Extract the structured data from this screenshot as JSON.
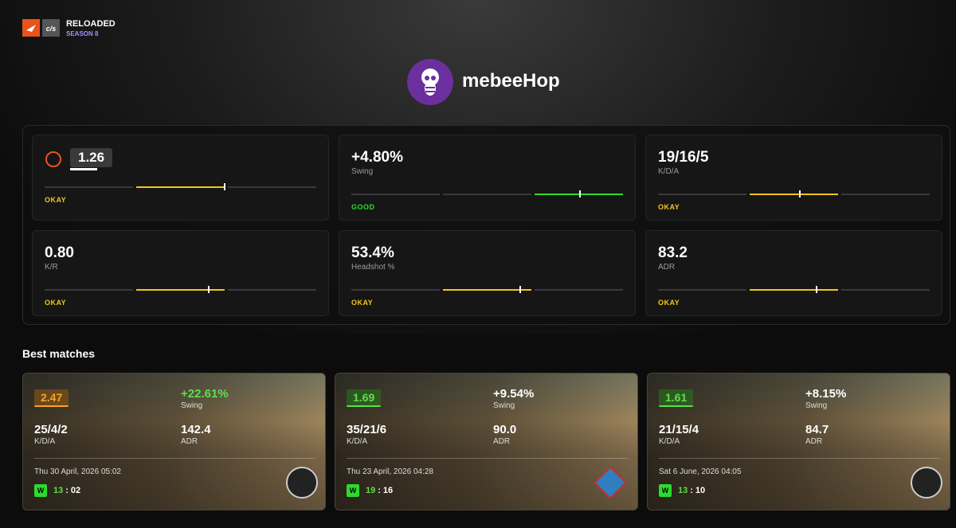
{
  "header": {
    "brand": "RELOADED",
    "season": "SEASON 8"
  },
  "player": {
    "name": "mebeeHop"
  },
  "stats": [
    {
      "value": "1.26",
      "rating": "OKAY",
      "color": "#f5c518",
      "gauge": 0.66,
      "boxed": true
    },
    {
      "value": "+4.80%",
      "label": "Swing",
      "rating": "GOOD",
      "color": "#2bdc2b",
      "gauge": 0.84
    },
    {
      "value": "19/16/5",
      "label": "K/D/A",
      "rating": "OKAY",
      "color": "#f5c518",
      "gauge": 0.52
    },
    {
      "value": "0.80",
      "label": "K/R",
      "rating": "OKAY",
      "color": "#f5c518",
      "gauge": 0.6
    },
    {
      "value": "53.4%",
      "label": "Headshot %",
      "rating": "OKAY",
      "color": "#f5c518",
      "gauge": 0.62
    },
    {
      "value": "83.2",
      "label": "ADR",
      "rating": "OKAY",
      "color": "#f5c518",
      "gauge": 0.58
    }
  ],
  "best_matches": {
    "title": "Best matches",
    "matches": [
      {
        "rating": "2.47",
        "rating_color": "#f5a623",
        "swing": "+22.61%",
        "swing_color": "#5be04a",
        "swing_label": "Swing",
        "kda": "25/4/2",
        "kda_label": "K/D/A",
        "adr": "142.4",
        "adr_label": "ADR",
        "date": "Thu 30 April, 2026 05:02",
        "result": "W",
        "score_us": "13",
        "score_them": "02",
        "map": "dust"
      },
      {
        "rating": "1.69",
        "rating_color": "#5be04a",
        "swing": "+9.54%",
        "swing_color": "#ffffff",
        "swing_label": "Swing",
        "kda": "35/21/6",
        "kda_label": "K/D/A",
        "adr": "90.0",
        "adr_label": "ADR",
        "date": "Thu 23 April, 2026 04:28",
        "result": "W",
        "score_us": "19",
        "score_them": "16",
        "map": "mirage"
      },
      {
        "rating": "1.61",
        "rating_color": "#5be04a",
        "swing": "+8.15%",
        "swing_color": "#ffffff",
        "swing_label": "Swing",
        "kda": "21/15/4",
        "kda_label": "K/D/A",
        "adr": "84.7",
        "adr_label": "ADR",
        "date": "Sat 6 June, 2026 04:05",
        "result": "W",
        "score_us": "13",
        "score_them": "10",
        "map": "dust"
      }
    ]
  }
}
